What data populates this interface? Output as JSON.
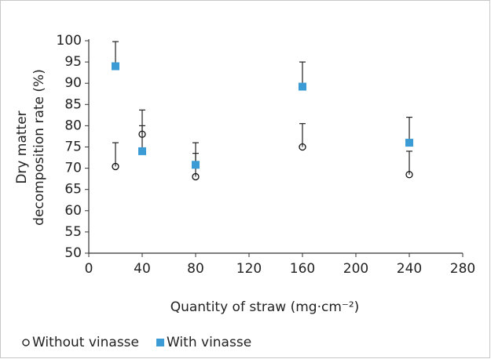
{
  "chart_data": {
    "type": "scatter",
    "xlabel": "Quantity of straw (mg·cm⁻²)",
    "ylabel": [
      "Dry matter",
      "decomposition rate (%)"
    ],
    "x": [
      20,
      40,
      80,
      160,
      240
    ],
    "series": [
      {
        "name": "Without vinasse",
        "color": "#111111",
        "marker": "open-circle",
        "values": [
          70.4,
          78,
          68,
          75,
          68.5
        ],
        "errors": [
          5.6,
          5.7,
          5.5,
          5.5,
          5.5
        ]
      },
      {
        "name": "With vinasse",
        "color": "#3a9bd5",
        "marker": "square",
        "values": [
          94,
          74,
          70.8,
          89.2,
          76
        ],
        "errors": [
          5.8,
          6,
          5.2,
          5.8,
          6
        ]
      }
    ],
    "xlim": [
      0,
      280
    ],
    "xticks": [
      0,
      40,
      80,
      120,
      160,
      200,
      240,
      280
    ],
    "ylim": [
      50,
      100
    ],
    "yticks": [
      50,
      55,
      60,
      65,
      70,
      75,
      80,
      85,
      90,
      95,
      100
    ],
    "grid": false,
    "legend": "bottom-left"
  }
}
